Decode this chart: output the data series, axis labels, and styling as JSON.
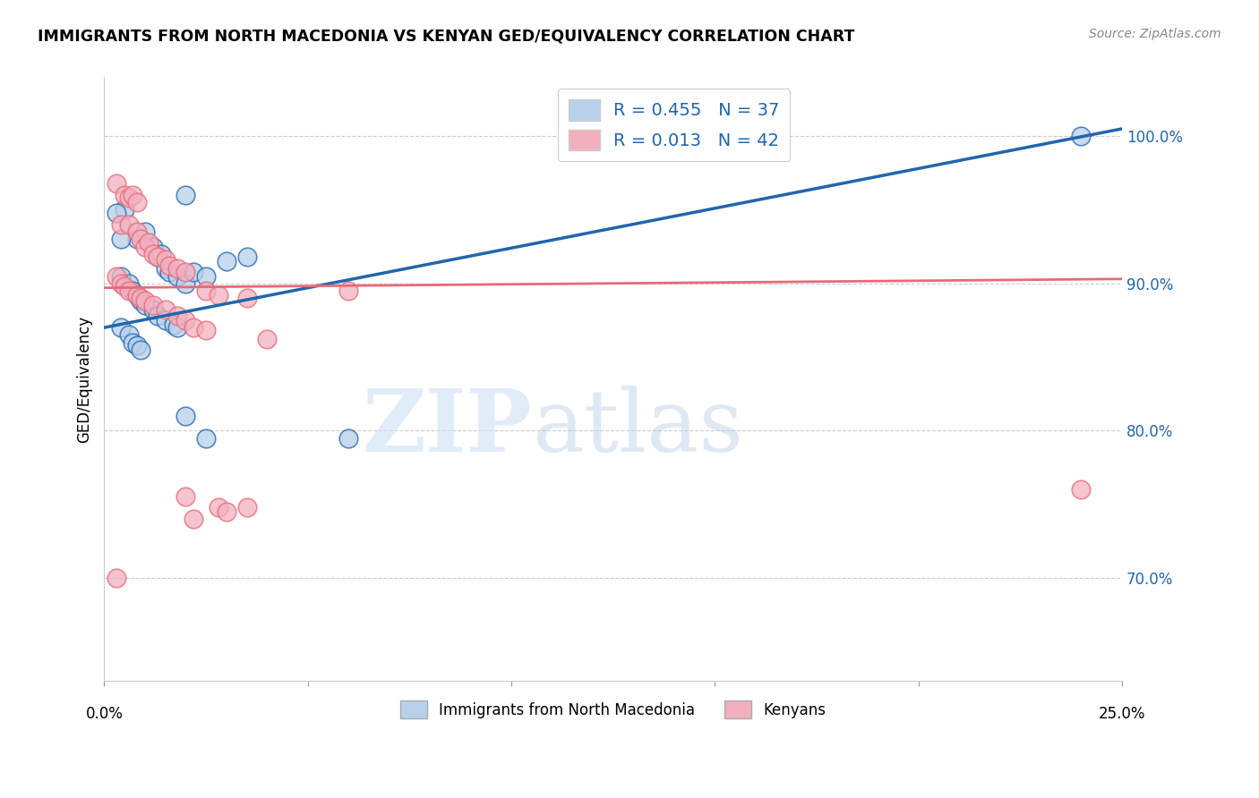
{
  "title": "IMMIGRANTS FROM NORTH MACEDONIA VS KENYAN GED/EQUIVALENCY CORRELATION CHART",
  "source": "Source: ZipAtlas.com",
  "ylabel": "GED/Equivalency",
  "yticks": [
    0.7,
    0.8,
    0.9,
    1.0
  ],
  "ytick_labels": [
    "70.0%",
    "80.0%",
    "90.0%",
    "100.0%"
  ],
  "xlim": [
    0.0,
    0.25
  ],
  "ylim": [
    0.63,
    1.04
  ],
  "legend_entries": [
    {
      "label": "R = 0.455   N = 37",
      "color": "#b8d0ea"
    },
    {
      "label": "R = 0.013   N = 42",
      "color": "#f2b0be"
    }
  ],
  "legend_bottom": [
    {
      "label": "Immigrants from North Macedonia",
      "color": "#b8d0ea"
    },
    {
      "label": "Kenyans",
      "color": "#f2b0be"
    }
  ],
  "blue_scatter": [
    [
      0.005,
      0.95
    ],
    [
      0.008,
      0.93
    ],
    [
      0.01,
      0.935
    ],
    [
      0.012,
      0.925
    ],
    [
      0.013,
      0.918
    ],
    [
      0.014,
      0.92
    ],
    [
      0.015,
      0.91
    ],
    [
      0.016,
      0.908
    ],
    [
      0.018,
      0.905
    ],
    [
      0.02,
      0.9
    ],
    [
      0.022,
      0.908
    ],
    [
      0.025,
      0.905
    ],
    [
      0.03,
      0.915
    ],
    [
      0.035,
      0.918
    ],
    [
      0.004,
      0.905
    ],
    [
      0.006,
      0.9
    ],
    [
      0.007,
      0.895
    ],
    [
      0.008,
      0.892
    ],
    [
      0.009,
      0.888
    ],
    [
      0.01,
      0.885
    ],
    [
      0.012,
      0.882
    ],
    [
      0.013,
      0.878
    ],
    [
      0.015,
      0.875
    ],
    [
      0.017,
      0.872
    ],
    [
      0.018,
      0.87
    ],
    [
      0.004,
      0.87
    ],
    [
      0.006,
      0.865
    ],
    [
      0.007,
      0.86
    ],
    [
      0.008,
      0.858
    ],
    [
      0.009,
      0.855
    ],
    [
      0.02,
      0.81
    ],
    [
      0.025,
      0.795
    ],
    [
      0.06,
      0.795
    ],
    [
      0.02,
      0.96
    ],
    [
      0.003,
      0.948
    ],
    [
      0.24,
      1.0
    ],
    [
      0.004,
      0.93
    ]
  ],
  "pink_scatter": [
    [
      0.003,
      0.968
    ],
    [
      0.005,
      0.96
    ],
    [
      0.006,
      0.958
    ],
    [
      0.007,
      0.96
    ],
    [
      0.008,
      0.955
    ],
    [
      0.004,
      0.94
    ],
    [
      0.006,
      0.94
    ],
    [
      0.008,
      0.935
    ],
    [
      0.009,
      0.93
    ],
    [
      0.01,
      0.925
    ],
    [
      0.011,
      0.928
    ],
    [
      0.012,
      0.92
    ],
    [
      0.013,
      0.918
    ],
    [
      0.015,
      0.916
    ],
    [
      0.016,
      0.912
    ],
    [
      0.018,
      0.91
    ],
    [
      0.02,
      0.908
    ],
    [
      0.003,
      0.905
    ],
    [
      0.004,
      0.9
    ],
    [
      0.005,
      0.898
    ],
    [
      0.006,
      0.895
    ],
    [
      0.008,
      0.892
    ],
    [
      0.009,
      0.89
    ],
    [
      0.01,
      0.888
    ],
    [
      0.012,
      0.885
    ],
    [
      0.015,
      0.882
    ],
    [
      0.018,
      0.878
    ],
    [
      0.02,
      0.875
    ],
    [
      0.025,
      0.895
    ],
    [
      0.028,
      0.892
    ],
    [
      0.035,
      0.89
    ],
    [
      0.022,
      0.87
    ],
    [
      0.025,
      0.868
    ],
    [
      0.04,
      0.862
    ],
    [
      0.06,
      0.895
    ],
    [
      0.02,
      0.755
    ],
    [
      0.028,
      0.748
    ],
    [
      0.03,
      0.745
    ],
    [
      0.035,
      0.748
    ],
    [
      0.24,
      0.76
    ],
    [
      0.003,
      0.7
    ],
    [
      0.022,
      0.74
    ]
  ],
  "blue_line_color": "#2166ac",
  "pink_line_color": "#e8697a",
  "blue_line": [
    [
      0.0,
      0.87
    ],
    [
      0.25,
      1.005
    ]
  ],
  "pink_line": [
    [
      0.0,
      0.897
    ],
    [
      0.25,
      0.903
    ]
  ],
  "watermark_zip": "ZIP",
  "watermark_atlas": "atlas",
  "background_color": "#ffffff",
  "grid_color": "#cccccc"
}
